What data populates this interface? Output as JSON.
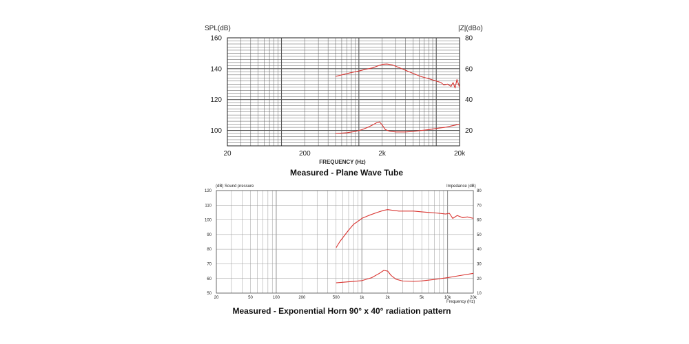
{
  "chart_data": [
    {
      "type": "line",
      "title": "Measured - Plane Wave Tube",
      "xlabel": "FREQUENCY (Hz)",
      "ylabel": "SPL(dB)",
      "y2label": "|Z|(dBo)",
      "xscale": "log",
      "xlim": [
        20,
        20000
      ],
      "ylim": [
        90,
        160
      ],
      "y2lim": [
        10,
        80
      ],
      "grid": true,
      "x_ticks": [
        {
          "value": 20,
          "label": "20"
        },
        {
          "value": 200,
          "label": "200"
        },
        {
          "value": 2000,
          "label": "2k"
        },
        {
          "value": 20000,
          "label": "20k"
        }
      ],
      "y_ticks": [
        {
          "value": 100,
          "label": "100"
        },
        {
          "value": 120,
          "label": "120"
        },
        {
          "value": 140,
          "label": "140"
        },
        {
          "value": 160,
          "label": "160"
        }
      ],
      "y2_ticks": [
        {
          "value": 20,
          "label": "20"
        },
        {
          "value": 40,
          "label": "40"
        },
        {
          "value": 60,
          "label": "60"
        },
        {
          "value": 80,
          "label": "80"
        }
      ],
      "series": [
        {
          "axis": "left",
          "color": "#d9332f",
          "x": [
            500,
            600,
            800,
            1000,
            1200,
            1500,
            1800,
            2000,
            2300,
            2700,
            3200,
            4000,
            5000,
            6300,
            8000,
            10000,
            11500,
            12500,
            14000,
            15500,
            16500,
            17500,
            18500,
            20000
          ],
          "y": [
            135,
            136,
            137.5,
            138.5,
            139.5,
            140.5,
            142,
            142.8,
            143,
            142.5,
            141,
            139,
            137,
            135,
            133.5,
            132,
            131,
            129.5,
            130,
            128.5,
            131,
            127.5,
            133,
            128
          ]
        },
        {
          "axis": "right",
          "color": "#d9332f",
          "x": [
            500,
            700,
            900,
            1100,
            1300,
            1500,
            1700,
            1850,
            2000,
            2200,
            2500,
            3000,
            4000,
            5000,
            6500,
            8000,
            10000,
            13000,
            16000,
            20000
          ],
          "y": [
            18,
            18.5,
            19.3,
            20.5,
            22,
            23.5,
            25,
            25.5,
            23.5,
            20.5,
            19.5,
            19,
            19,
            19.3,
            20,
            20.5,
            21.3,
            22,
            23,
            24
          ]
        }
      ]
    },
    {
      "type": "line",
      "title": "Measured - Exponential Horn 90° x 40° radiation pattern",
      "xlabel": "Frequency (Hz)",
      "ylabel": "(dB) Sound pressure",
      "y2label": "Impedance (dB)",
      "xscale": "log",
      "xlim": [
        20,
        20000
      ],
      "ylim": [
        50,
        120
      ],
      "y2lim": [
        10,
        80
      ],
      "grid": true,
      "x_ticks": [
        {
          "value": 20,
          "label": "20"
        },
        {
          "value": 50,
          "label": "50"
        },
        {
          "value": 100,
          "label": "100"
        },
        {
          "value": 200,
          "label": "200"
        },
        {
          "value": 500,
          "label": "500"
        },
        {
          "value": 1000,
          "label": "1k"
        },
        {
          "value": 2000,
          "label": "2k"
        },
        {
          "value": 5000,
          "label": "5k"
        },
        {
          "value": 10000,
          "label": "10k"
        },
        {
          "value": 20000,
          "label": "20k"
        }
      ],
      "y_ticks": [
        {
          "value": 50,
          "label": "50"
        },
        {
          "value": 60,
          "label": "60"
        },
        {
          "value": 70,
          "label": "70"
        },
        {
          "value": 80,
          "label": "80"
        },
        {
          "value": 90,
          "label": "90"
        },
        {
          "value": 100,
          "label": "100"
        },
        {
          "value": 110,
          "label": "110"
        },
        {
          "value": 120,
          "label": "120"
        }
      ],
      "y2_ticks": [
        {
          "value": 10,
          "label": "10"
        },
        {
          "value": 20,
          "label": "20"
        },
        {
          "value": 30,
          "label": "30"
        },
        {
          "value": 40,
          "label": "40"
        },
        {
          "value": 50,
          "label": "50"
        },
        {
          "value": 60,
          "label": "60"
        },
        {
          "value": 70,
          "label": "70"
        },
        {
          "value": 80,
          "label": "80"
        }
      ],
      "series": [
        {
          "axis": "left",
          "color": "#d9332f",
          "x": [
            500,
            550,
            620,
            700,
            800,
            900,
            1000,
            1200,
            1500,
            1800,
            2000,
            2300,
            2700,
            3200,
            4000,
            5000,
            6300,
            8000,
            9500,
            10500,
            11500,
            13000,
            15000,
            17000,
            20000
          ],
          "y": [
            81,
            85,
            89,
            93,
            97,
            99,
            101,
            103,
            105,
            106.5,
            107,
            106.5,
            106,
            106,
            106,
            105.5,
            105,
            104.5,
            104,
            104.5,
            101,
            103,
            101.5,
            102,
            101
          ]
        },
        {
          "axis": "right",
          "color": "#d9332f",
          "x": [
            500,
            700,
            1000,
            1300,
            1600,
            1800,
            2000,
            2200,
            2500,
            3000,
            4000,
            5000,
            7000,
            10000,
            14000,
            20000
          ],
          "y": [
            17,
            17.7,
            18.5,
            20.5,
            23.5,
            25.5,
            25,
            22,
            19.5,
            18.2,
            18,
            18.3,
            19.3,
            20.5,
            22,
            23.5
          ]
        }
      ]
    }
  ],
  "top": {
    "ylabel": "SPL(dB)",
    "y2label": "|Z|(dBo)",
    "xlabel": "FREQUENCY (Hz)",
    "caption": "Measured - Plane Wave Tube"
  },
  "bottom": {
    "ylabel": "(dB)  Sound pressure",
    "y2label": "Impedance  (dB)",
    "xlabel": "Frequency  (Hz)",
    "caption": "Measured - Exponential Horn 90° x 40° radiation pattern"
  }
}
